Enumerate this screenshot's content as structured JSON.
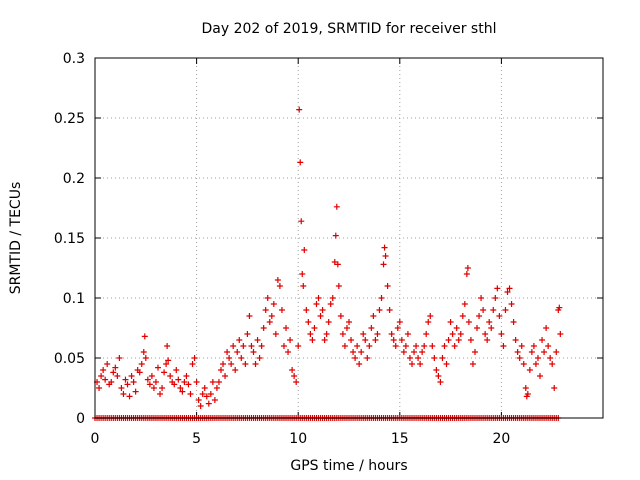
{
  "chart_data": {
    "type": "scatter",
    "title": "Day 202 of 2019, SRMTID for receiver sthl",
    "xlabel": "GPS time / hours",
    "ylabel": "SRMTID / TECUs",
    "xlim": [
      0,
      25
    ],
    "ylim": [
      0,
      0.3
    ],
    "xticks": [
      0,
      5,
      10,
      15,
      20
    ],
    "xtick_labels": [
      "0",
      "5",
      "10",
      "15",
      "20"
    ],
    "yticks": [
      0,
      0.05,
      0.1,
      0.15,
      0.2,
      0.25,
      0.3
    ],
    "ytick_labels": [
      "0",
      "0.05",
      "0.1",
      "0.15",
      "0.2",
      "0.25",
      "0.3"
    ],
    "grid": true,
    "legend": "none",
    "marker": "plus",
    "color": "#e00000",
    "series": [
      {
        "name": "SRMTID",
        "points": [
          [
            0.1,
            0.03
          ],
          [
            0.2,
            0.025
          ],
          [
            0.3,
            0.035
          ],
          [
            0.4,
            0.04
          ],
          [
            0.5,
            0.032
          ],
          [
            0.6,
            0.045
          ],
          [
            0.7,
            0.028
          ],
          [
            0.8,
            0.03
          ],
          [
            0.9,
            0.038
          ],
          [
            1.0,
            0.042
          ],
          [
            1.1,
            0.035
          ],
          [
            1.2,
            0.05
          ],
          [
            1.3,
            0.025
          ],
          [
            1.4,
            0.02
          ],
          [
            1.5,
            0.032
          ],
          [
            1.6,
            0.028
          ],
          [
            1.7,
            0.018
          ],
          [
            1.8,
            0.035
          ],
          [
            1.9,
            0.03
          ],
          [
            2.0,
            0.022
          ],
          [
            2.1,
            0.04
          ],
          [
            2.2,
            0.038
          ],
          [
            2.3,
            0.045
          ],
          [
            2.4,
            0.055
          ],
          [
            2.45,
            0.068
          ],
          [
            2.5,
            0.05
          ],
          [
            2.6,
            0.032
          ],
          [
            2.7,
            0.028
          ],
          [
            2.8,
            0.035
          ],
          [
            2.9,
            0.025
          ],
          [
            3.0,
            0.03
          ],
          [
            3.1,
            0.042
          ],
          [
            3.2,
            0.02
          ],
          [
            3.3,
            0.025
          ],
          [
            3.4,
            0.038
          ],
          [
            3.5,
            0.045
          ],
          [
            3.55,
            0.06
          ],
          [
            3.6,
            0.048
          ],
          [
            3.7,
            0.035
          ],
          [
            3.8,
            0.03
          ],
          [
            3.9,
            0.028
          ],
          [
            4.0,
            0.04
          ],
          [
            4.1,
            0.032
          ],
          [
            4.2,
            0.025
          ],
          [
            4.3,
            0.022
          ],
          [
            4.4,
            0.03
          ],
          [
            4.5,
            0.035
          ],
          [
            4.6,
            0.028
          ],
          [
            4.7,
            0.02
          ],
          [
            4.8,
            0.045
          ],
          [
            4.9,
            0.05
          ],
          [
            5.0,
            0.03
          ],
          [
            5.1,
            0.015
          ],
          [
            5.2,
            0.01
          ],
          [
            5.3,
            0.02
          ],
          [
            5.4,
            0.025
          ],
          [
            5.5,
            0.018
          ],
          [
            5.6,
            0.012
          ],
          [
            5.7,
            0.02
          ],
          [
            5.8,
            0.03
          ],
          [
            5.9,
            0.015
          ],
          [
            6.0,
            0.025
          ],
          [
            6.1,
            0.03
          ],
          [
            6.2,
            0.04
          ],
          [
            6.3,
            0.045
          ],
          [
            6.4,
            0.035
          ],
          [
            6.5,
            0.055
          ],
          [
            6.6,
            0.05
          ],
          [
            6.7,
            0.045
          ],
          [
            6.8,
            0.06
          ],
          [
            6.9,
            0.04
          ],
          [
            7.0,
            0.055
          ],
          [
            7.1,
            0.065
          ],
          [
            7.2,
            0.05
          ],
          [
            7.3,
            0.06
          ],
          [
            7.4,
            0.045
          ],
          [
            7.5,
            0.07
          ],
          [
            7.6,
            0.085
          ],
          [
            7.7,
            0.06
          ],
          [
            7.8,
            0.055
          ],
          [
            7.9,
            0.045
          ],
          [
            8.0,
            0.065
          ],
          [
            8.1,
            0.05
          ],
          [
            8.2,
            0.06
          ],
          [
            8.3,
            0.075
          ],
          [
            8.4,
            0.09
          ],
          [
            8.5,
            0.1
          ],
          [
            8.6,
            0.08
          ],
          [
            8.7,
            0.085
          ],
          [
            8.8,
            0.095
          ],
          [
            8.9,
            0.07
          ],
          [
            9.0,
            0.115
          ],
          [
            9.1,
            0.11
          ],
          [
            9.2,
            0.09
          ],
          [
            9.3,
            0.06
          ],
          [
            9.4,
            0.075
          ],
          [
            9.5,
            0.055
          ],
          [
            9.6,
            0.065
          ],
          [
            9.7,
            0.04
          ],
          [
            9.8,
            0.035
          ],
          [
            9.9,
            0.03
          ],
          [
            10.0,
            0.06
          ],
          [
            10.05,
            0.257
          ],
          [
            10.1,
            0.213
          ],
          [
            10.15,
            0.164
          ],
          [
            10.2,
            0.12
          ],
          [
            10.25,
            0.11
          ],
          [
            10.3,
            0.14
          ],
          [
            10.4,
            0.09
          ],
          [
            10.5,
            0.08
          ],
          [
            10.6,
            0.07
          ],
          [
            10.7,
            0.065
          ],
          [
            10.8,
            0.075
          ],
          [
            10.9,
            0.095
          ],
          [
            11.0,
            0.1
          ],
          [
            11.1,
            0.085
          ],
          [
            11.2,
            0.09
          ],
          [
            11.3,
            0.065
          ],
          [
            11.4,
            0.07
          ],
          [
            11.5,
            0.08
          ],
          [
            11.6,
            0.095
          ],
          [
            11.7,
            0.1
          ],
          [
            11.8,
            0.13
          ],
          [
            11.85,
            0.152
          ],
          [
            11.9,
            0.176
          ],
          [
            11.95,
            0.128
          ],
          [
            12.0,
            0.11
          ],
          [
            12.1,
            0.085
          ],
          [
            12.2,
            0.07
          ],
          [
            12.3,
            0.06
          ],
          [
            12.4,
            0.075
          ],
          [
            12.5,
            0.08
          ],
          [
            12.6,
            0.065
          ],
          [
            12.7,
            0.055
          ],
          [
            12.8,
            0.05
          ],
          [
            12.9,
            0.06
          ],
          [
            13.0,
            0.045
          ],
          [
            13.1,
            0.055
          ],
          [
            13.2,
            0.07
          ],
          [
            13.3,
            0.065
          ],
          [
            13.4,
            0.05
          ],
          [
            13.5,
            0.06
          ],
          [
            13.6,
            0.075
          ],
          [
            13.7,
            0.085
          ],
          [
            13.8,
            0.065
          ],
          [
            13.9,
            0.07
          ],
          [
            14.0,
            0.09
          ],
          [
            14.1,
            0.1
          ],
          [
            14.2,
            0.128
          ],
          [
            14.25,
            0.142
          ],
          [
            14.3,
            0.135
          ],
          [
            14.4,
            0.11
          ],
          [
            14.5,
            0.09
          ],
          [
            14.6,
            0.07
          ],
          [
            14.7,
            0.065
          ],
          [
            14.8,
            0.06
          ],
          [
            14.9,
            0.075
          ],
          [
            15.0,
            0.08
          ],
          [
            15.1,
            0.065
          ],
          [
            15.2,
            0.055
          ],
          [
            15.3,
            0.06
          ],
          [
            15.4,
            0.07
          ],
          [
            15.5,
            0.05
          ],
          [
            15.6,
            0.045
          ],
          [
            15.7,
            0.055
          ],
          [
            15.8,
            0.06
          ],
          [
            15.9,
            0.05
          ],
          [
            16.0,
            0.045
          ],
          [
            16.1,
            0.055
          ],
          [
            16.2,
            0.06
          ],
          [
            16.3,
            0.07
          ],
          [
            16.4,
            0.08
          ],
          [
            16.5,
            0.085
          ],
          [
            16.6,
            0.06
          ],
          [
            16.7,
            0.05
          ],
          [
            16.8,
            0.04
          ],
          [
            16.9,
            0.035
          ],
          [
            17.0,
            0.03
          ],
          [
            17.1,
            0.05
          ],
          [
            17.2,
            0.06
          ],
          [
            17.3,
            0.045
          ],
          [
            17.4,
            0.065
          ],
          [
            17.5,
            0.08
          ],
          [
            17.6,
            0.07
          ],
          [
            17.7,
            0.06
          ],
          [
            17.8,
            0.075
          ],
          [
            17.9,
            0.065
          ],
          [
            18.0,
            0.07
          ],
          [
            18.1,
            0.085
          ],
          [
            18.2,
            0.095
          ],
          [
            18.3,
            0.12
          ],
          [
            18.35,
            0.125
          ],
          [
            18.4,
            0.08
          ],
          [
            18.5,
            0.065
          ],
          [
            18.6,
            0.045
          ],
          [
            18.7,
            0.055
          ],
          [
            18.8,
            0.075
          ],
          [
            18.9,
            0.085
          ],
          [
            19.0,
            0.1
          ],
          [
            19.1,
            0.09
          ],
          [
            19.2,
            0.07
          ],
          [
            19.3,
            0.065
          ],
          [
            19.4,
            0.08
          ],
          [
            19.5,
            0.075
          ],
          [
            19.6,
            0.09
          ],
          [
            19.7,
            0.1
          ],
          [
            19.8,
            0.108
          ],
          [
            19.9,
            0.085
          ],
          [
            20.0,
            0.07
          ],
          [
            20.1,
            0.06
          ],
          [
            20.2,
            0.09
          ],
          [
            20.3,
            0.105
          ],
          [
            20.4,
            0.108
          ],
          [
            20.5,
            0.095
          ],
          [
            20.6,
            0.08
          ],
          [
            20.7,
            0.065
          ],
          [
            20.8,
            0.055
          ],
          [
            20.9,
            0.05
          ],
          [
            21.0,
            0.06
          ],
          [
            21.1,
            0.045
          ],
          [
            21.2,
            0.025
          ],
          [
            21.25,
            0.018
          ],
          [
            21.3,
            0.02
          ],
          [
            21.4,
            0.04
          ],
          [
            21.5,
            0.055
          ],
          [
            21.6,
            0.06
          ],
          [
            21.7,
            0.045
          ],
          [
            21.8,
            0.05
          ],
          [
            21.9,
            0.035
          ],
          [
            22.0,
            0.065
          ],
          [
            22.1,
            0.055
          ],
          [
            22.2,
            0.075
          ],
          [
            22.3,
            0.06
          ],
          [
            22.4,
            0.05
          ],
          [
            22.5,
            0.045
          ],
          [
            22.6,
            0.025
          ],
          [
            22.7,
            0.055
          ],
          [
            22.8,
            0.09
          ],
          [
            22.85,
            0.092
          ],
          [
            22.9,
            0.07
          ]
        ],
        "baseline": {
          "y": 0,
          "x_start": 0,
          "x_end": 22.8,
          "x_step": 0.1,
          "note": "dense row of zero-value points along the x axis"
        }
      }
    ]
  }
}
